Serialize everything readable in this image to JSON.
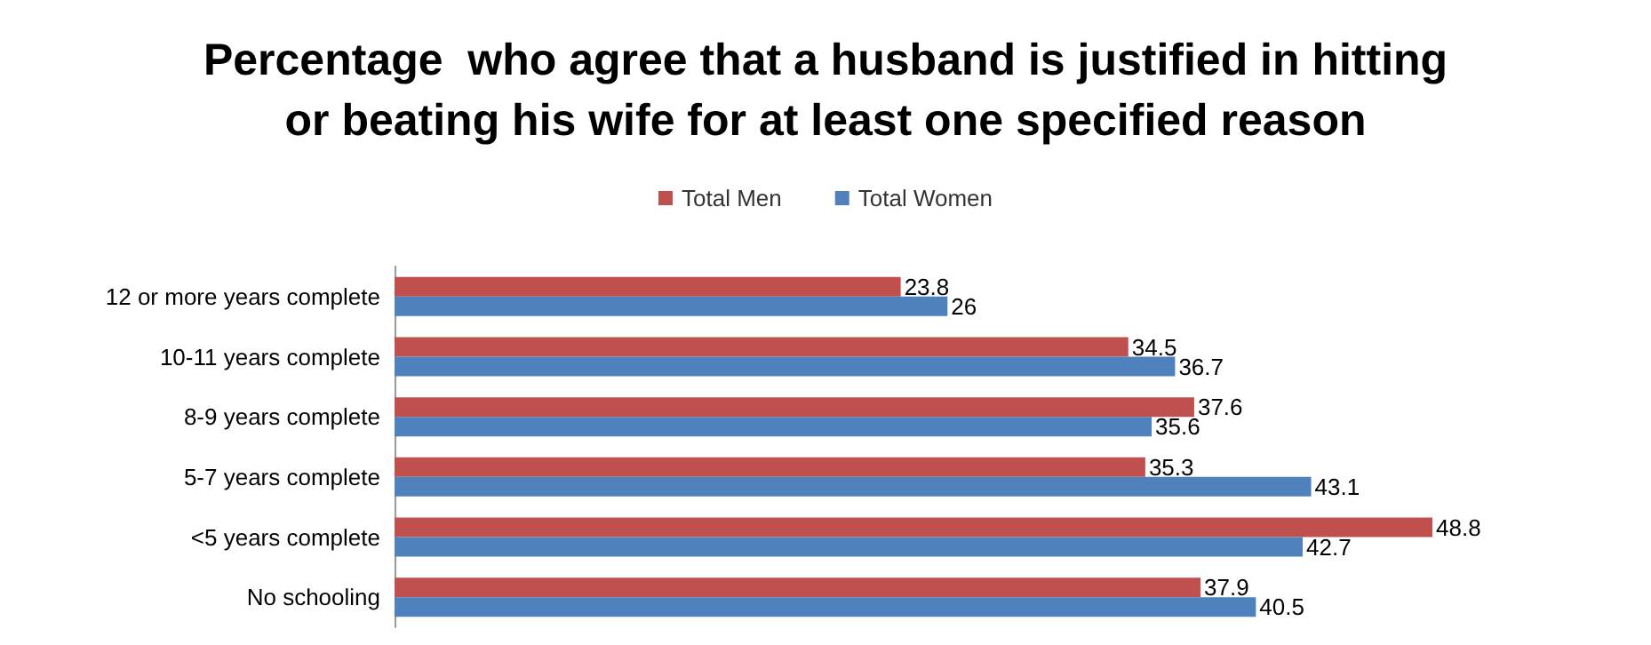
{
  "chart_data": {
    "type": "bar",
    "orientation": "horizontal",
    "title": "Percentage  who agree that a husband is justified in hitting\nor beating his wife for at least one specified reason",
    "categories": [
      "12 or more years complete",
      "10-11 years complete",
      "8-9 years complete",
      "5-7 years complete",
      "<5 years complete",
      "No schooling"
    ],
    "series": [
      {
        "name": "Total Men",
        "color": "#c0504d",
        "values": [
          23.8,
          34.5,
          37.6,
          35.3,
          48.8,
          37.9
        ]
      },
      {
        "name": "Total Women",
        "color": "#4f81bd",
        "values": [
          26,
          36.7,
          35.6,
          43.1,
          42.7,
          40.5
        ]
      }
    ],
    "data_labels": true,
    "legend": "top"
  }
}
